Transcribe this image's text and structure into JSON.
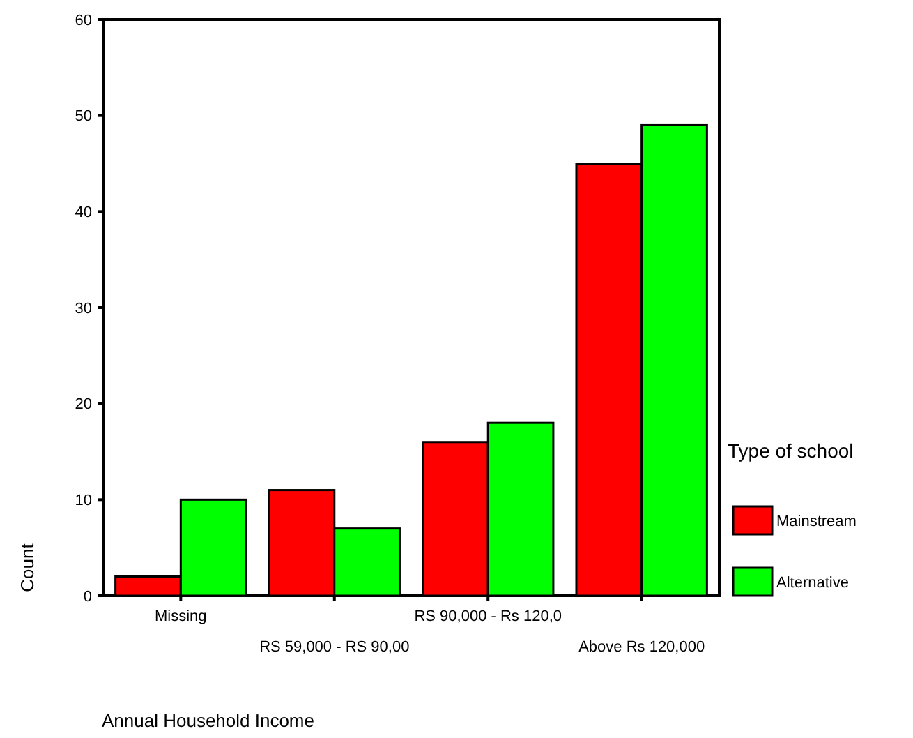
{
  "chart_data": {
    "type": "bar",
    "xlabel": "Annual Household Income",
    "ylabel": "Count",
    "legend_title": "Type of school",
    "categories": [
      "Missing",
      "RS 59,000 - RS 90,00",
      "RS 90,000 - Rs 120,0",
      "Above Rs 120,000"
    ],
    "series": [
      {
        "name": "Mainstream",
        "color": "#ff0000",
        "values": [
          2,
          11,
          16,
          45
        ]
      },
      {
        "name": "Alternative",
        "color": "#00ff00",
        "values": [
          10,
          7,
          18,
          49
        ]
      }
    ],
    "ylim": [
      0,
      60
    ],
    "yticks": [
      0,
      10,
      20,
      30,
      40,
      50,
      60
    ],
    "grid": false,
    "legend": "right"
  }
}
